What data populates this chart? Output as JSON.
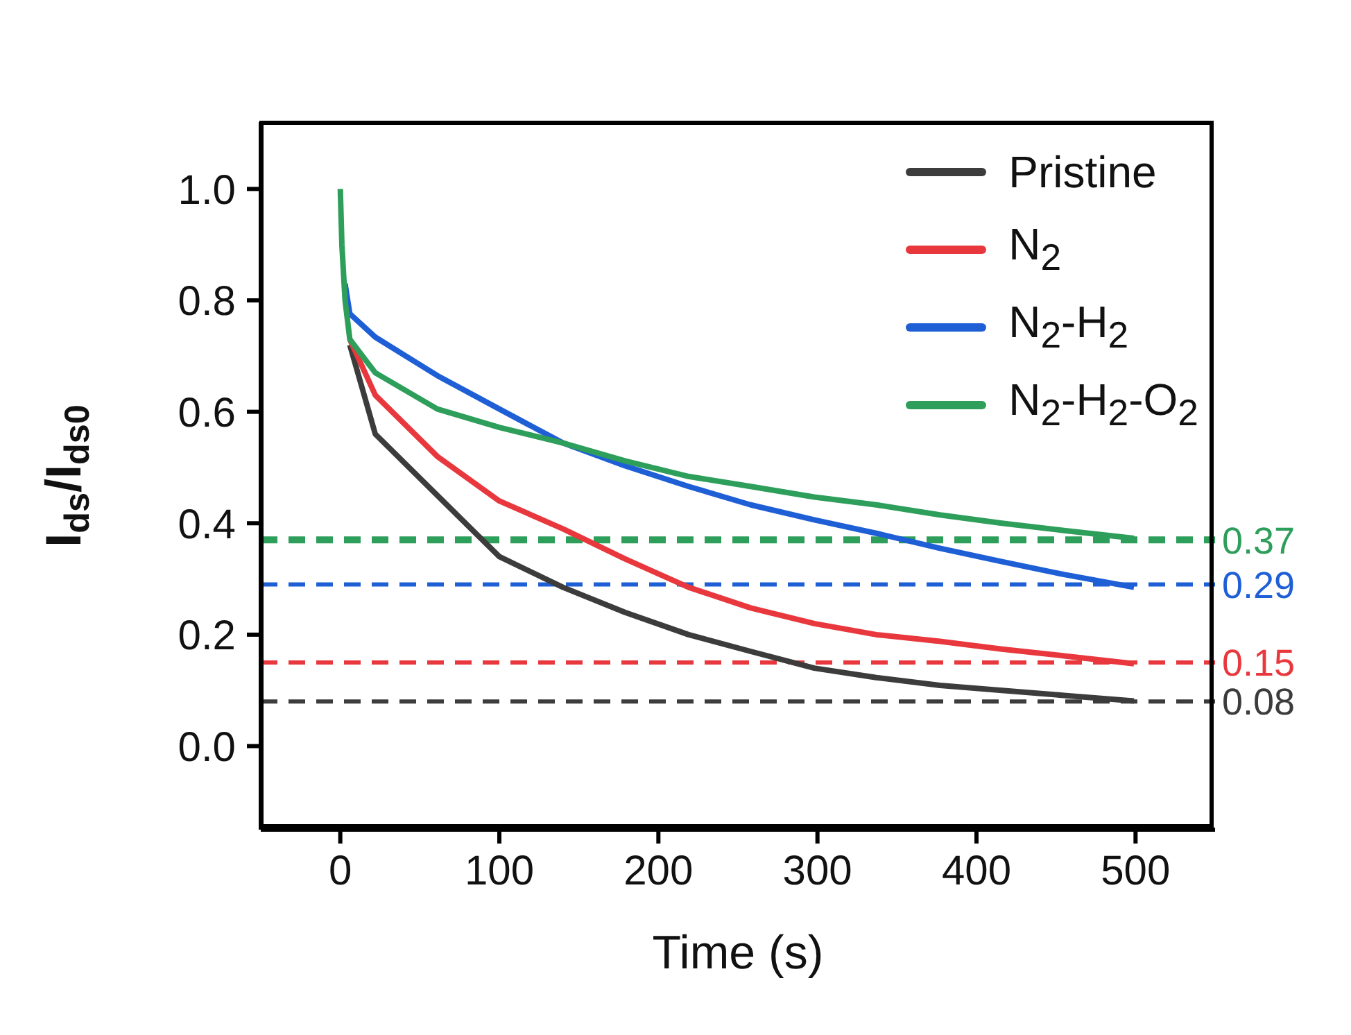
{
  "chart_data": {
    "type": "line",
    "xlabel": "Time (s)",
    "ylabel": "I$_{ds}$/I$_{ds0}$",
    "xlim": [
      -50,
      550
    ],
    "xticks": [
      0,
      100,
      200,
      300,
      400,
      500
    ],
    "ylim": [
      -0.15,
      1.12
    ],
    "yticks": [
      {
        "value": 0,
        "label": "0.0"
      },
      0.2,
      0.4,
      0.6,
      0.8,
      {
        "value": 1,
        "label": "1.0"
      }
    ],
    "x": [
      0,
      1,
      3,
      6,
      22,
      61,
      100,
      140,
      179,
      219,
      258,
      298,
      337,
      377,
      416,
      455,
      499
    ],
    "series": [
      {
        "name": "Pristine",
        "color": "#3c3c3c",
        "values": [
          null,
          null,
          null,
          0.72,
          0.56,
          0.45,
          0.34,
          0.285,
          0.24,
          0.2,
          0.17,
          0.14,
          0.123,
          0.109,
          0.1,
          0.091,
          0.081
        ]
      },
      {
        "name": "N$_{2}$",
        "color": "#e8383d",
        "values": [
          null,
          null,
          null,
          0.73,
          0.63,
          0.52,
          0.44,
          0.39,
          0.336,
          0.285,
          0.248,
          0.22,
          0.2,
          0.188,
          0.174,
          0.162,
          0.148
        ]
      },
      {
        "name": "N$_{2}$-H$_{2}$",
        "color": "#1f5fd6",
        "values": [
          null,
          null,
          0.83,
          0.776,
          0.734,
          0.665,
          0.605,
          0.544,
          0.503,
          0.466,
          0.433,
          0.406,
          0.382,
          0.355,
          0.331,
          0.308,
          0.285
        ]
      },
      {
        "name": "N$_{2}$-H$_{2}$-O$_{2}$",
        "color": "#2e9e5b",
        "values": [
          1.0,
          0.9,
          0.8,
          0.73,
          0.67,
          0.605,
          0.572,
          0.544,
          0.512,
          0.484,
          0.466,
          0.447,
          0.433,
          0.415,
          0.4,
          0.387,
          0.373
        ]
      }
    ],
    "ref_lines": [
      {
        "axis": "y",
        "value": 0.37,
        "label": "0.37",
        "color": "#2e9e5b",
        "line_style": "dashed"
      },
      {
        "axis": "y",
        "value": 0.29,
        "label": "0.29",
        "color": "#1f5fd6",
        "line_style": "dashed"
      },
      {
        "axis": "y",
        "value": 0.15,
        "label": "0.15",
        "color": "#e8383d",
        "line_style": "dashed"
      },
      {
        "axis": "y",
        "value": 0.08,
        "label": "0.08",
        "color": "#3c3c3c",
        "line_style": "dashed"
      }
    ],
    "legend": "top right",
    "grid": false,
    "marker": "none",
    "line_style": "solid"
  }
}
